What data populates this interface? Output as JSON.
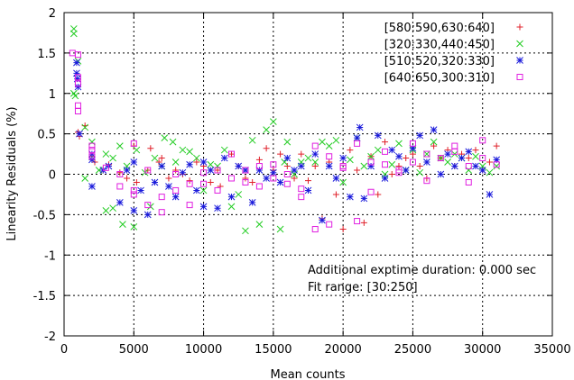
{
  "chart_data": {
    "type": "scatter",
    "title": "",
    "xlabel": "Mean counts",
    "ylabel": "Linearity Residuals (%)",
    "xlim": [
      0,
      35000
    ],
    "ylim": [
      -2,
      2
    ],
    "xticks": [
      0,
      5000,
      10000,
      15000,
      20000,
      25000,
      30000,
      35000
    ],
    "yticks": [
      -2,
      -1.5,
      -1,
      -0.5,
      0,
      0.5,
      1,
      1.5,
      2
    ],
    "grid": true,
    "legend_position": "top-right",
    "annotations": [
      "Additional exptime duration: 0.000 sec",
      "Fit range: [30:250]"
    ],
    "series": [
      {
        "name": "[580:590,630:640]",
        "marker": "plus",
        "color": "#e0202a",
        "points": [
          [
            1000,
            0.52
          ],
          [
            1100,
            0.47
          ],
          [
            1500,
            0.6
          ],
          [
            2000,
            0.22
          ],
          [
            2200,
            0.15
          ],
          [
            2800,
            0.05
          ],
          [
            3200,
            0.12
          ],
          [
            4000,
            0.02
          ],
          [
            4500,
            -0.05
          ],
          [
            5000,
            0.35
          ],
          [
            5200,
            -0.1
          ],
          [
            6000,
            0.05
          ],
          [
            6200,
            0.32
          ],
          [
            6800,
            0.15
          ],
          [
            7000,
            0.2
          ],
          [
            7500,
            -0.05
          ],
          [
            8000,
            0.05
          ],
          [
            8500,
            0.0
          ],
          [
            9000,
            -0.08
          ],
          [
            9500,
            0.15
          ],
          [
            10000,
            0.1
          ],
          [
            10500,
            -0.1
          ],
          [
            11000,
            0.05
          ],
          [
            11200,
            -0.15
          ],
          [
            12000,
            0.25
          ],
          [
            12500,
            0.1
          ],
          [
            13000,
            -0.05
          ],
          [
            13500,
            -0.1
          ],
          [
            14000,
            0.18
          ],
          [
            14500,
            0.32
          ],
          [
            15000,
            0.05
          ],
          [
            15500,
            0.25
          ],
          [
            16000,
            0.1
          ],
          [
            16500,
            -0.05
          ],
          [
            17000,
            0.25
          ],
          [
            17500,
            -0.08
          ],
          [
            18000,
            0.1
          ],
          [
            18500,
            -0.55
          ],
          [
            19000,
            0.15
          ],
          [
            19500,
            -0.25
          ],
          [
            20000,
            -0.68
          ],
          [
            20500,
            0.3
          ],
          [
            21000,
            0.05
          ],
          [
            21500,
            -0.6
          ],
          [
            22000,
            0.22
          ],
          [
            22500,
            -0.25
          ],
          [
            23000,
            0.4
          ],
          [
            23500,
            0.0
          ],
          [
            24000,
            0.1
          ],
          [
            24500,
            0.2
          ],
          [
            25000,
            0.25
          ],
          [
            25500,
            0.1
          ],
          [
            26000,
            -0.05
          ],
          [
            26500,
            0.35
          ],
          [
            27000,
            0.2
          ],
          [
            27500,
            0.3
          ],
          [
            28000,
            0.1
          ],
          [
            28500,
            0.25
          ],
          [
            29000,
            0.2
          ],
          [
            29500,
            0.3
          ],
          [
            30000,
            0.05
          ],
          [
            30500,
            0.15
          ],
          [
            31000,
            0.35
          ]
        ]
      },
      {
        "name": "[320:330,440:450]",
        "marker": "cross",
        "color": "#22cc22",
        "points": [
          [
            700,
            1.8
          ],
          [
            700,
            1.74
          ],
          [
            700,
            1.0
          ],
          [
            800,
            0.97
          ],
          [
            1000,
            1.4
          ],
          [
            1500,
            0.58
          ],
          [
            1500,
            -0.05
          ],
          [
            2000,
            0.4
          ],
          [
            2500,
            0.05
          ],
          [
            3000,
            0.25
          ],
          [
            3000,
            -0.45
          ],
          [
            3500,
            0.2
          ],
          [
            3500,
            -0.42
          ],
          [
            4000,
            0.35
          ],
          [
            4200,
            -0.62
          ],
          [
            4500,
            0.1
          ],
          [
            5000,
            -0.65
          ],
          [
            5200,
            0.3
          ],
          [
            5800,
            0.02
          ],
          [
            6200,
            -0.4
          ],
          [
            6500,
            0.2
          ],
          [
            7000,
            0.1
          ],
          [
            7200,
            0.45
          ],
          [
            7800,
            0.4
          ],
          [
            8000,
            0.15
          ],
          [
            8500,
            0.3
          ],
          [
            9000,
            0.28
          ],
          [
            9500,
            0.2
          ],
          [
            10000,
            -0.2
          ],
          [
            10500,
            0.12
          ],
          [
            11000,
            0.1
          ],
          [
            11500,
            0.3
          ],
          [
            12000,
            -0.4
          ],
          [
            12500,
            -0.25
          ],
          [
            13000,
            -0.7
          ],
          [
            13500,
            0.42
          ],
          [
            14000,
            -0.62
          ],
          [
            14500,
            0.55
          ],
          [
            15000,
            0.65
          ],
          [
            15500,
            -0.68
          ],
          [
            15800,
            0.15
          ],
          [
            16000,
            0.4
          ],
          [
            16500,
            0.0
          ],
          [
            17000,
            0.15
          ],
          [
            17500,
            0.2
          ],
          [
            18000,
            0.15
          ],
          [
            18500,
            0.4
          ],
          [
            19000,
            0.35
          ],
          [
            19500,
            0.42
          ],
          [
            20000,
            -0.1
          ],
          [
            20500,
            0.18
          ],
          [
            21000,
            0.45
          ],
          [
            21500,
            0.1
          ],
          [
            22000,
            0.22
          ],
          [
            22500,
            0.3
          ],
          [
            23000,
            0.0
          ],
          [
            23500,
            0.12
          ],
          [
            24000,
            0.38
          ],
          [
            24500,
            0.05
          ],
          [
            25000,
            0.3
          ],
          [
            25500,
            0.02
          ],
          [
            26000,
            0.25
          ],
          [
            26500,
            0.4
          ],
          [
            27000,
            0.2
          ],
          [
            27500,
            0.15
          ],
          [
            28000,
            0.25
          ],
          [
            28500,
            0.2
          ],
          [
            29000,
            0.05
          ],
          [
            29500,
            0.22
          ],
          [
            30000,
            0.1
          ],
          [
            30500,
            0.02
          ],
          [
            31000,
            0.1
          ]
        ]
      },
      {
        "name": "[510:520,320:330]",
        "marker": "star",
        "color": "#1a1adb",
        "points": [
          [
            900,
            1.38
          ],
          [
            900,
            1.25
          ],
          [
            950,
            1.18
          ],
          [
            1000,
            1.08
          ],
          [
            1100,
            0.5
          ],
          [
            2000,
            0.25
          ],
          [
            2000,
            0.18
          ],
          [
            2000,
            -0.15
          ],
          [
            2800,
            0.05
          ],
          [
            3200,
            0.1
          ],
          [
            4000,
            -0.35
          ],
          [
            4500,
            0.05
          ],
          [
            5000,
            0.15
          ],
          [
            5000,
            -0.45
          ],
          [
            5500,
            -0.2
          ],
          [
            6000,
            -0.5
          ],
          [
            6500,
            -0.1
          ],
          [
            7000,
            0.1
          ],
          [
            7500,
            -0.15
          ],
          [
            8000,
            -0.28
          ],
          [
            8500,
            0.02
          ],
          [
            9000,
            0.12
          ],
          [
            9500,
            -0.2
          ],
          [
            10000,
            0.15
          ],
          [
            10000,
            -0.4
          ],
          [
            10500,
            0.05
          ],
          [
            11000,
            -0.42
          ],
          [
            11500,
            0.2
          ],
          [
            12000,
            -0.28
          ],
          [
            12500,
            0.1
          ],
          [
            13000,
            0.05
          ],
          [
            13500,
            -0.35
          ],
          [
            14000,
            0.05
          ],
          [
            14500,
            -0.05
          ],
          [
            15000,
            0.02
          ],
          [
            15500,
            -0.1
          ],
          [
            16000,
            0.2
          ],
          [
            16500,
            0.05
          ],
          [
            17000,
            0.1
          ],
          [
            17500,
            -0.2
          ],
          [
            18000,
            0.25
          ],
          [
            18500,
            -0.57
          ],
          [
            19000,
            0.1
          ],
          [
            19500,
            -0.05
          ],
          [
            20000,
            0.2
          ],
          [
            20500,
            -0.28
          ],
          [
            21000,
            0.45
          ],
          [
            21200,
            0.58
          ],
          [
            21500,
            -0.3
          ],
          [
            22000,
            0.1
          ],
          [
            22500,
            0.48
          ],
          [
            23000,
            -0.05
          ],
          [
            23500,
            0.3
          ],
          [
            24000,
            0.22
          ],
          [
            24500,
            0.05
          ],
          [
            25000,
            0.32
          ],
          [
            25500,
            0.48
          ],
          [
            26000,
            0.15
          ],
          [
            26500,
            0.55
          ],
          [
            27000,
            0.0
          ],
          [
            27500,
            0.25
          ],
          [
            28000,
            0.1
          ],
          [
            28500,
            0.2
          ],
          [
            29000,
            0.28
          ],
          [
            29500,
            0.1
          ],
          [
            30000,
            0.05
          ],
          [
            30500,
            -0.25
          ],
          [
            31000,
            0.18
          ]
        ]
      },
      {
        "name": "[640:650,300:310]",
        "marker": "square",
        "color": "#e020e0",
        "points": [
          [
            600,
            1.5
          ],
          [
            1000,
            1.48
          ],
          [
            1000,
            1.2
          ],
          [
            1000,
            1.12
          ],
          [
            1000,
            0.85
          ],
          [
            1000,
            0.78
          ],
          [
            2000,
            0.35
          ],
          [
            2000,
            0.3
          ],
          [
            2000,
            0.22
          ],
          [
            3000,
            0.08
          ],
          [
            4000,
            0.0
          ],
          [
            4000,
            -0.15
          ],
          [
            5000,
            -0.25
          ],
          [
            5000,
            -0.2
          ],
          [
            5000,
            0.38
          ],
          [
            6000,
            -0.38
          ],
          [
            6000,
            0.05
          ],
          [
            7000,
            -0.28
          ],
          [
            7000,
            -0.47
          ],
          [
            8000,
            0.0
          ],
          [
            8000,
            -0.2
          ],
          [
            9000,
            -0.12
          ],
          [
            9000,
            -0.38
          ],
          [
            10000,
            0.02
          ],
          [
            10000,
            -0.12
          ],
          [
            11000,
            0.05
          ],
          [
            11000,
            -0.2
          ],
          [
            12000,
            0.25
          ],
          [
            12000,
            -0.05
          ],
          [
            13000,
            0.05
          ],
          [
            13000,
            -0.1
          ],
          [
            14000,
            0.1
          ],
          [
            14000,
            -0.15
          ],
          [
            15000,
            0.12
          ],
          [
            15000,
            -0.05
          ],
          [
            16000,
            -0.12
          ],
          [
            16000,
            0.0
          ],
          [
            17000,
            -0.18
          ],
          [
            17000,
            -0.28
          ],
          [
            18000,
            0.35
          ],
          [
            18000,
            -0.68
          ],
          [
            19000,
            0.22
          ],
          [
            19000,
            -0.62
          ],
          [
            20000,
            0.08
          ],
          [
            20000,
            0.1
          ],
          [
            21000,
            0.38
          ],
          [
            21000,
            -0.58
          ],
          [
            22000,
            0.15
          ],
          [
            22000,
            -0.22
          ],
          [
            23000,
            0.12
          ],
          [
            23000,
            0.28
          ],
          [
            24000,
            0.05
          ],
          [
            24000,
            0.02
          ],
          [
            25000,
            0.15
          ],
          [
            25000,
            0.38
          ],
          [
            26000,
            0.25
          ],
          [
            26000,
            -0.08
          ],
          [
            27000,
            0.2
          ],
          [
            28000,
            0.35
          ],
          [
            28000,
            0.28
          ],
          [
            29000,
            0.1
          ],
          [
            29000,
            -0.1
          ],
          [
            30000,
            0.42
          ],
          [
            30000,
            0.2
          ],
          [
            31000,
            0.12
          ]
        ]
      }
    ]
  }
}
